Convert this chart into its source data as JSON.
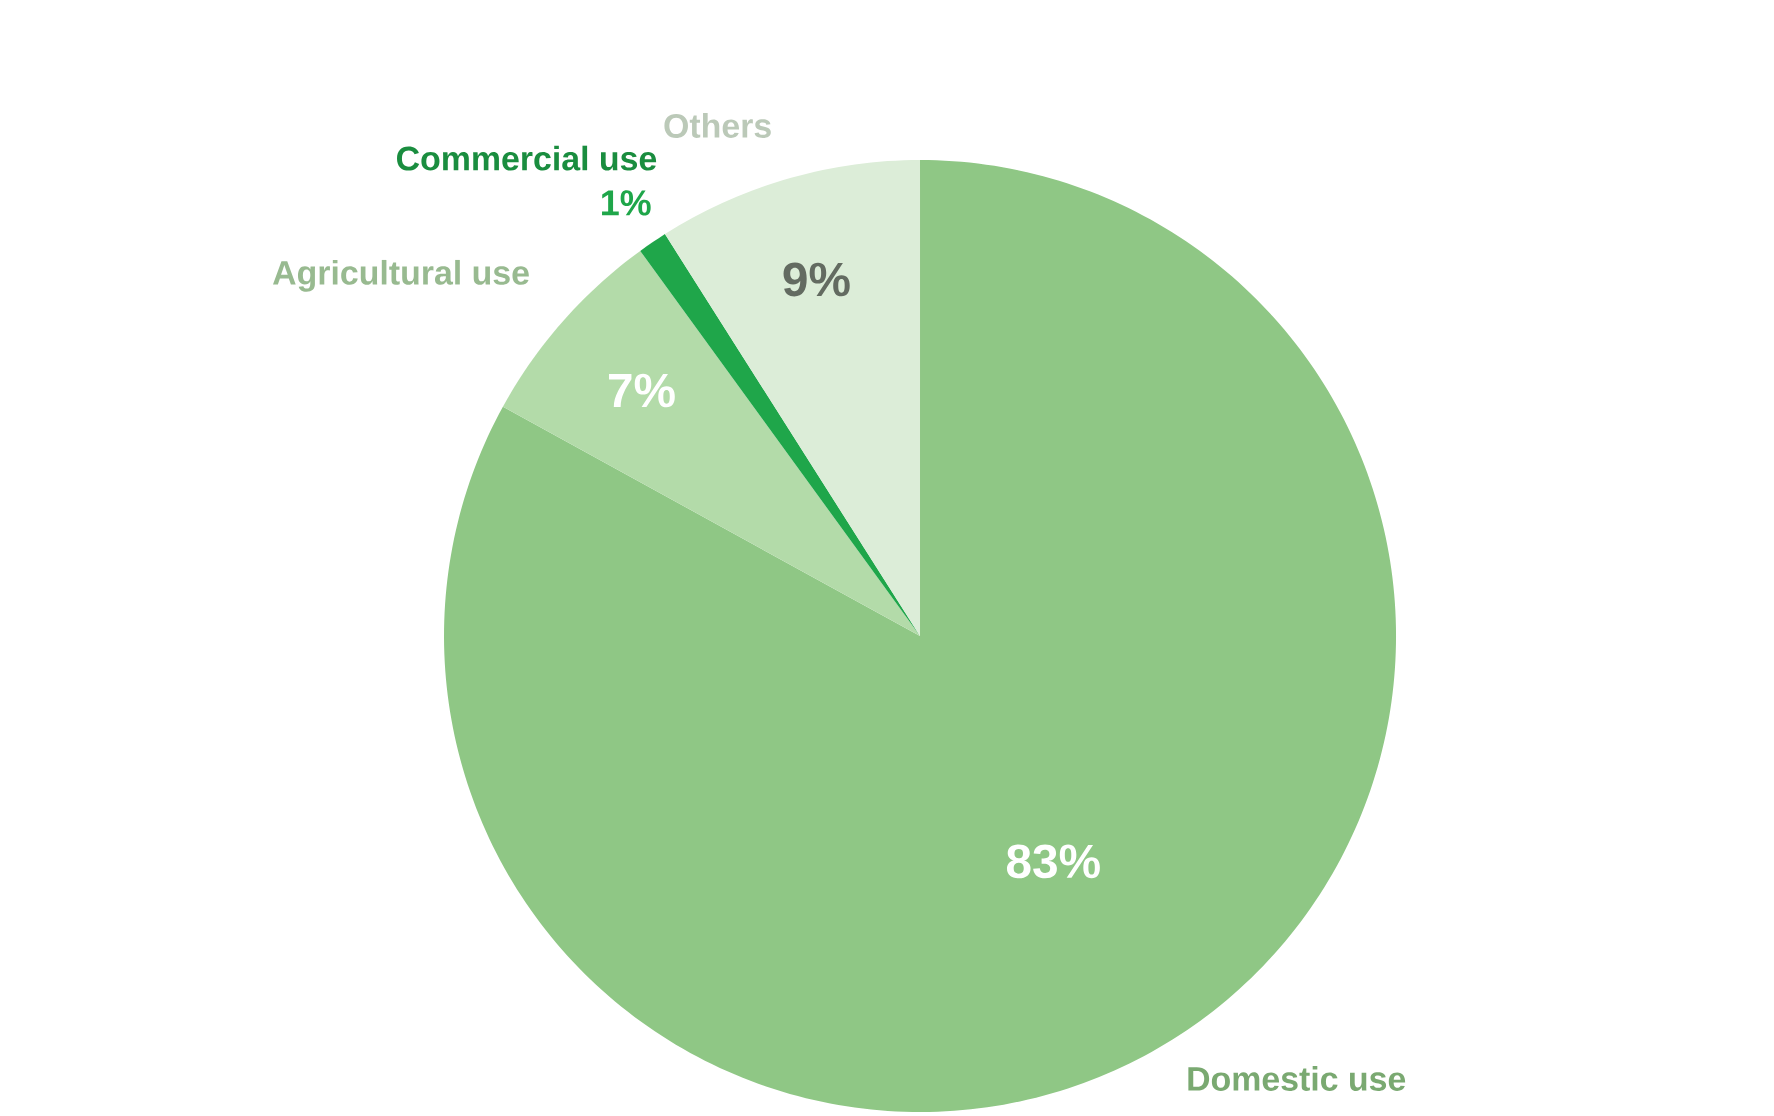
{
  "chart_data": {
    "type": "pie",
    "categories": [
      "Domestic use",
      "Agricultural use",
      "Commercial use",
      "Others"
    ],
    "values": [
      83,
      7,
      1,
      9
    ],
    "value_labels": [
      "83%",
      "7%",
      "1%",
      "9%"
    ],
    "colors": [
      "#8fc785",
      "#b3dba9",
      "#1fa64a",
      "#dcedd8"
    ]
  }
}
